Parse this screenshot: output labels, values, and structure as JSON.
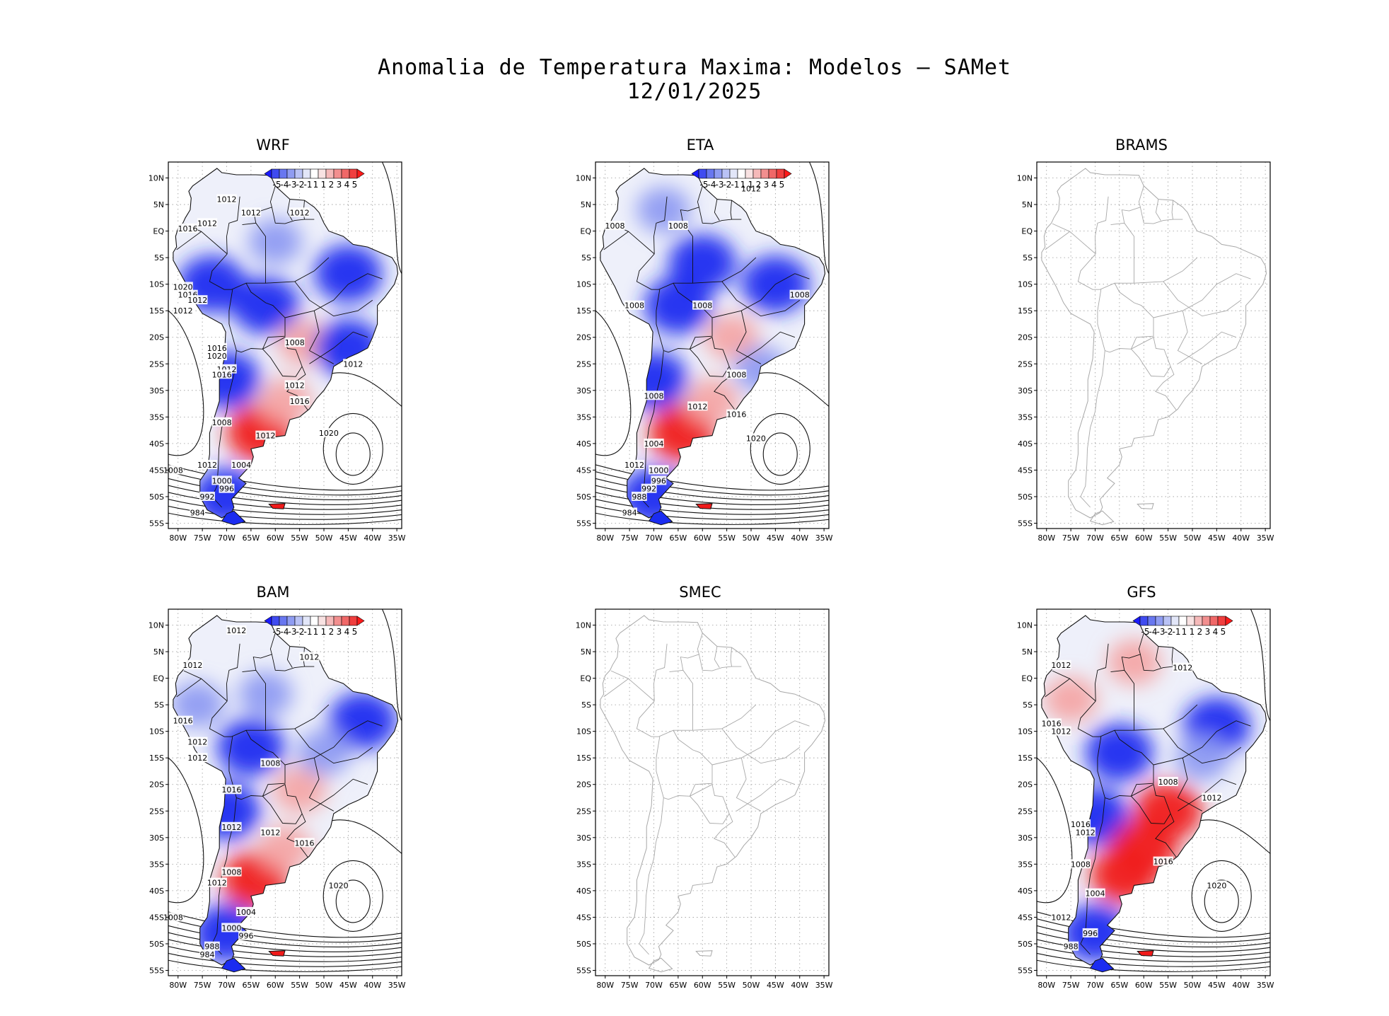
{
  "title": {
    "line1": "Anomalia de Temperatura Maxima: Modelos — SAMet",
    "line2": "12/01/2025"
  },
  "axes": {
    "lat_labels": [
      "10N",
      "5N",
      "EQ",
      "5S",
      "10S",
      "15S",
      "20S",
      "25S",
      "30S",
      "35S",
      "40S",
      "45S",
      "50S",
      "55S"
    ],
    "lon_labels": [
      "80W",
      "75W",
      "70W",
      "65W",
      "60W",
      "55W",
      "50W",
      "45W",
      "40W",
      "35W"
    ],
    "lat_values": [
      10,
      5,
      0,
      -5,
      -10,
      -15,
      -20,
      -25,
      -30,
      -35,
      -40,
      -45,
      -50,
      -55
    ],
    "lon_values": [
      -80,
      -75,
      -70,
      -65,
      -60,
      -55,
      -50,
      -45,
      -40,
      -35
    ],
    "lon_range": [
      -82,
      -34
    ],
    "lat_range": [
      13,
      -56
    ]
  },
  "colorbar": {
    "labels": [
      "-5",
      "-4",
      "-3",
      "-2",
      "-1",
      "1",
      "1",
      "2",
      "3",
      "4",
      "5"
    ],
    "colors": [
      "#1a1aff",
      "#3f4bf0",
      "#6877f0",
      "#8f9cf2",
      "#b9c2f5",
      "#e2e6f8",
      "#ffffff",
      "#f8e2e2",
      "#f5b9b9",
      "#f28f8f",
      "#f06868",
      "#f03f3f",
      "#ff1a1a"
    ]
  },
  "colors": {
    "cold": "#1b2cf0",
    "cool": "#8f9cf2",
    "warm": "#f4a6a6",
    "hot": "#f01a1a",
    "coast_gray": "#a8a8a8",
    "land_light": "#eef0fa"
  },
  "panels": [
    {
      "name": "WRF",
      "has_data": true,
      "anomalies": [
        {
          "lon": -60,
          "lat": -2,
          "kind": "cool"
        },
        {
          "lon": -45,
          "lat": -8,
          "kind": "cold"
        },
        {
          "lon": -62,
          "lat": -14,
          "kind": "cold"
        },
        {
          "lon": -73,
          "lat": -10,
          "kind": "cold"
        },
        {
          "lon": -54,
          "lat": -21,
          "kind": "warm"
        },
        {
          "lon": -45,
          "lat": -22,
          "kind": "cold"
        },
        {
          "lon": -70,
          "lat": -28,
          "kind": "cold"
        },
        {
          "lon": -63,
          "lat": -38,
          "kind": "hot"
        },
        {
          "lon": -58,
          "lat": -32,
          "kind": "warm"
        },
        {
          "lon": -70,
          "lat": -50,
          "kind": "cold"
        }
      ],
      "contours": [
        {
          "label": "1012",
          "lon": -70,
          "lat": 6
        },
        {
          "label": "1012",
          "lon": -74,
          "lat": 1.5
        },
        {
          "label": "1016",
          "lon": -78,
          "lat": 0.5
        },
        {
          "label": "1012",
          "lon": -65,
          "lat": 3.5
        },
        {
          "label": "1012",
          "lon": -55,
          "lat": 3.5
        },
        {
          "label": "1020",
          "lon": -79,
          "lat": -10.5
        },
        {
          "label": "1016",
          "lon": -78,
          "lat": -12
        },
        {
          "label": "1012",
          "lon": -76,
          "lat": -13
        },
        {
          "label": "1012",
          "lon": -79,
          "lat": -15
        },
        {
          "label": "1016",
          "lon": -72,
          "lat": -22
        },
        {
          "label": "1020",
          "lon": -72,
          "lat": -23.5
        },
        {
          "label": "1008",
          "lon": -56,
          "lat": -21
        },
        {
          "label": "1012",
          "lon": -70,
          "lat": -26
        },
        {
          "label": "1016",
          "lon": -71,
          "lat": -27
        },
        {
          "label": "1012",
          "lon": -44,
          "lat": -25
        },
        {
          "label": "1012",
          "lon": -56,
          "lat": -29
        },
        {
          "label": "1016",
          "lon": -55,
          "lat": -32
        },
        {
          "label": "1008",
          "lon": -71,
          "lat": -36
        },
        {
          "label": "1012",
          "lon": -62,
          "lat": -38.5
        },
        {
          "label": "1020",
          "lon": -49,
          "lat": -38
        },
        {
          "label": "1012",
          "lon": -74,
          "lat": -44
        },
        {
          "label": "1004",
          "lon": -67,
          "lat": -44
        },
        {
          "label": "1008",
          "lon": -81,
          "lat": -45
        },
        {
          "label": "1000",
          "lon": -71,
          "lat": -47
        },
        {
          "label": "996",
          "lon": -70,
          "lat": -48.5
        },
        {
          "label": "992",
          "lon": -74,
          "lat": -50
        },
        {
          "label": "984",
          "lon": -76,
          "lat": -53
        }
      ]
    },
    {
      "name": "ETA",
      "has_data": true,
      "anomalies": [
        {
          "lon": -60,
          "lat": -6,
          "kind": "cold"
        },
        {
          "lon": -45,
          "lat": -10,
          "kind": "cold"
        },
        {
          "lon": -65,
          "lat": -14,
          "kind": "cold"
        },
        {
          "lon": -68,
          "lat": 4,
          "kind": "cool"
        },
        {
          "lon": -54,
          "lat": -20,
          "kind": "warm"
        },
        {
          "lon": -48,
          "lat": -26,
          "kind": "cool"
        },
        {
          "lon": -70,
          "lat": -28,
          "kind": "cold"
        },
        {
          "lon": -64,
          "lat": -38,
          "kind": "hot"
        },
        {
          "lon": -58,
          "lat": -32,
          "kind": "warm"
        },
        {
          "lon": -70,
          "lat": -50,
          "kind": "cold"
        }
      ],
      "contours": [
        {
          "label": "1012",
          "lon": -50,
          "lat": 8
        },
        {
          "label": "1008",
          "lon": -78,
          "lat": 1
        },
        {
          "label": "1008",
          "lon": -65,
          "lat": 1
        },
        {
          "label": "1008",
          "lon": -40,
          "lat": -12
        },
        {
          "label": "1008",
          "lon": -74,
          "lat": -14
        },
        {
          "label": "1008",
          "lon": -60,
          "lat": -14
        },
        {
          "label": "1008",
          "lon": -53,
          "lat": -27
        },
        {
          "label": "1008",
          "lon": -70,
          "lat": -31
        },
        {
          "label": "1012",
          "lon": -61,
          "lat": -33
        },
        {
          "label": "1016",
          "lon": -53,
          "lat": -34.5
        },
        {
          "label": "1020",
          "lon": -49,
          "lat": -39
        },
        {
          "label": "1004",
          "lon": -70,
          "lat": -40
        },
        {
          "label": "1012",
          "lon": -74,
          "lat": -44
        },
        {
          "label": "1000",
          "lon": -69,
          "lat": -45
        },
        {
          "label": "996",
          "lon": -69,
          "lat": -47
        },
        {
          "label": "992",
          "lon": -71,
          "lat": -48.5
        },
        {
          "label": "988",
          "lon": -73,
          "lat": -50
        },
        {
          "label": "984",
          "lon": -75,
          "lat": -53
        }
      ]
    },
    {
      "name": "BRAMS",
      "has_data": false,
      "anomalies": [],
      "contours": []
    },
    {
      "name": "BAM",
      "has_data": true,
      "anomalies": [
        {
          "lon": -62,
          "lat": -3,
          "kind": "cool"
        },
        {
          "lon": -42,
          "lat": -8,
          "kind": "cold"
        },
        {
          "lon": -65,
          "lat": -13,
          "kind": "cold"
        },
        {
          "lon": -76,
          "lat": -5,
          "kind": "cool"
        },
        {
          "lon": -55,
          "lat": -21,
          "kind": "warm"
        },
        {
          "lon": -50,
          "lat": -14,
          "kind": "cool"
        },
        {
          "lon": -70,
          "lat": -25,
          "kind": "cold"
        },
        {
          "lon": -64,
          "lat": -38,
          "kind": "hot"
        },
        {
          "lon": -58,
          "lat": -32,
          "kind": "warm"
        },
        {
          "lon": -70,
          "lat": -48,
          "kind": "cold"
        }
      ],
      "contours": [
        {
          "label": "1012",
          "lon": -68,
          "lat": 9
        },
        {
          "label": "1012",
          "lon": -53,
          "lat": 4
        },
        {
          "label": "1012",
          "lon": -77,
          "lat": 2.5
        },
        {
          "label": "1016",
          "lon": -79,
          "lat": -8
        },
        {
          "label": "1012",
          "lon": -76,
          "lat": -12
        },
        {
          "label": "1012",
          "lon": -76,
          "lat": -15
        },
        {
          "label": "1008",
          "lon": -61,
          "lat": -16
        },
        {
          "label": "1016",
          "lon": -69,
          "lat": -21
        },
        {
          "label": "1012",
          "lon": -69,
          "lat": -28
        },
        {
          "label": "1012",
          "lon": -61,
          "lat": -29
        },
        {
          "label": "1016",
          "lon": -54,
          "lat": -31
        },
        {
          "label": "1008",
          "lon": -69,
          "lat": -36.5
        },
        {
          "label": "1020",
          "lon": -47,
          "lat": -39
        },
        {
          "label": "1012",
          "lon": -72,
          "lat": -38.5
        },
        {
          "label": "1004",
          "lon": -66,
          "lat": -44
        },
        {
          "label": "1008",
          "lon": -81,
          "lat": -45
        },
        {
          "label": "1000",
          "lon": -69,
          "lat": -47
        },
        {
          "label": "996",
          "lon": -66,
          "lat": -48.5
        },
        {
          "label": "988",
          "lon": -73,
          "lat": -50.5
        },
        {
          "label": "984",
          "lon": -74,
          "lat": -52
        }
      ]
    },
    {
      "name": "SMEC",
      "has_data": false,
      "anomalies": [],
      "contours": []
    },
    {
      "name": "GFS",
      "has_data": true,
      "anomalies": [
        {
          "lon": -62,
          "lat": 3,
          "kind": "warm"
        },
        {
          "lon": -45,
          "lat": -9,
          "kind": "cold"
        },
        {
          "lon": -65,
          "lat": -14,
          "kind": "cold"
        },
        {
          "lon": -75,
          "lat": -4,
          "kind": "warm"
        },
        {
          "lon": -55,
          "lat": -25,
          "kind": "hot"
        },
        {
          "lon": -48,
          "lat": -15,
          "kind": "cool"
        },
        {
          "lon": -70,
          "lat": -26,
          "kind": "cold"
        },
        {
          "lon": -64,
          "lat": -37,
          "kind": "hot"
        },
        {
          "lon": -60,
          "lat": -32,
          "kind": "hot"
        },
        {
          "lon": -70,
          "lat": -48,
          "kind": "cold"
        }
      ],
      "contours": [
        {
          "label": "1012",
          "lon": -77,
          "lat": 2.5
        },
        {
          "label": "1012",
          "lon": -52,
          "lat": 2
        },
        {
          "label": "1016",
          "lon": -79,
          "lat": -8.5
        },
        {
          "label": "1012",
          "lon": -77,
          "lat": -10
        },
        {
          "label": "1008",
          "lon": -55,
          "lat": -19.5
        },
        {
          "label": "1012",
          "lon": -46,
          "lat": -22.5
        },
        {
          "label": "1016",
          "lon": -73,
          "lat": -27.5
        },
        {
          "label": "1012",
          "lon": -72,
          "lat": -29
        },
        {
          "label": "1016",
          "lon": -56,
          "lat": -34.5
        },
        {
          "label": "1008",
          "lon": -73,
          "lat": -35
        },
        {
          "label": "1020",
          "lon": -45,
          "lat": -39
        },
        {
          "label": "1004",
          "lon": -70,
          "lat": -40.5
        },
        {
          "label": "1012",
          "lon": -77,
          "lat": -45
        },
        {
          "label": "996",
          "lon": -71,
          "lat": -48
        },
        {
          "label": "988",
          "lon": -75,
          "lat": -50.5
        }
      ]
    }
  ]
}
